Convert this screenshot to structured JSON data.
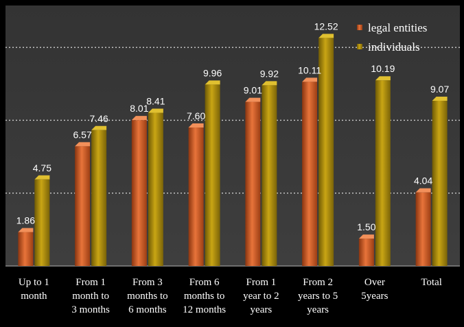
{
  "chart_data": {
    "type": "bar",
    "categories": [
      [
        "Up to 1",
        "month"
      ],
      [
        "From 1",
        "month to",
        "3 months"
      ],
      [
        "From 3",
        "months to",
        "6 months"
      ],
      [
        "From 6",
        "months to",
        "12 months"
      ],
      [
        "From 1",
        "year to 2",
        "years"
      ],
      [
        "From 2",
        "years to 5",
        "years"
      ],
      [
        "Over",
        "5years"
      ],
      [
        "Total"
      ]
    ],
    "series": [
      {
        "name": "legal entities",
        "values": [
          1.86,
          6.57,
          8.01,
          7.6,
          9.01,
          10.11,
          1.5,
          4.04
        ],
        "labels": [
          "1.86",
          "6.57",
          "8.01",
          "7.60",
          "9.01",
          "10.11",
          "1.50",
          "4.04"
        ],
        "color": "#d9622b"
      },
      {
        "name": "individuals",
        "values": [
          4.75,
          7.46,
          8.41,
          9.96,
          9.92,
          12.52,
          10.19,
          9.07
        ],
        "labels": [
          "4.75",
          "7.46",
          "8.41",
          "9.96",
          "9.92",
          "12.52",
          "10.19",
          "9.07"
        ],
        "color": "#b8960c"
      }
    ],
    "ylim": [
      0,
      14
    ],
    "grid": true,
    "gridlines": [
      4,
      8,
      12
    ],
    "legend": "top-right",
    "plot_background": "#3b3b3b",
    "page_background": "#000000"
  }
}
